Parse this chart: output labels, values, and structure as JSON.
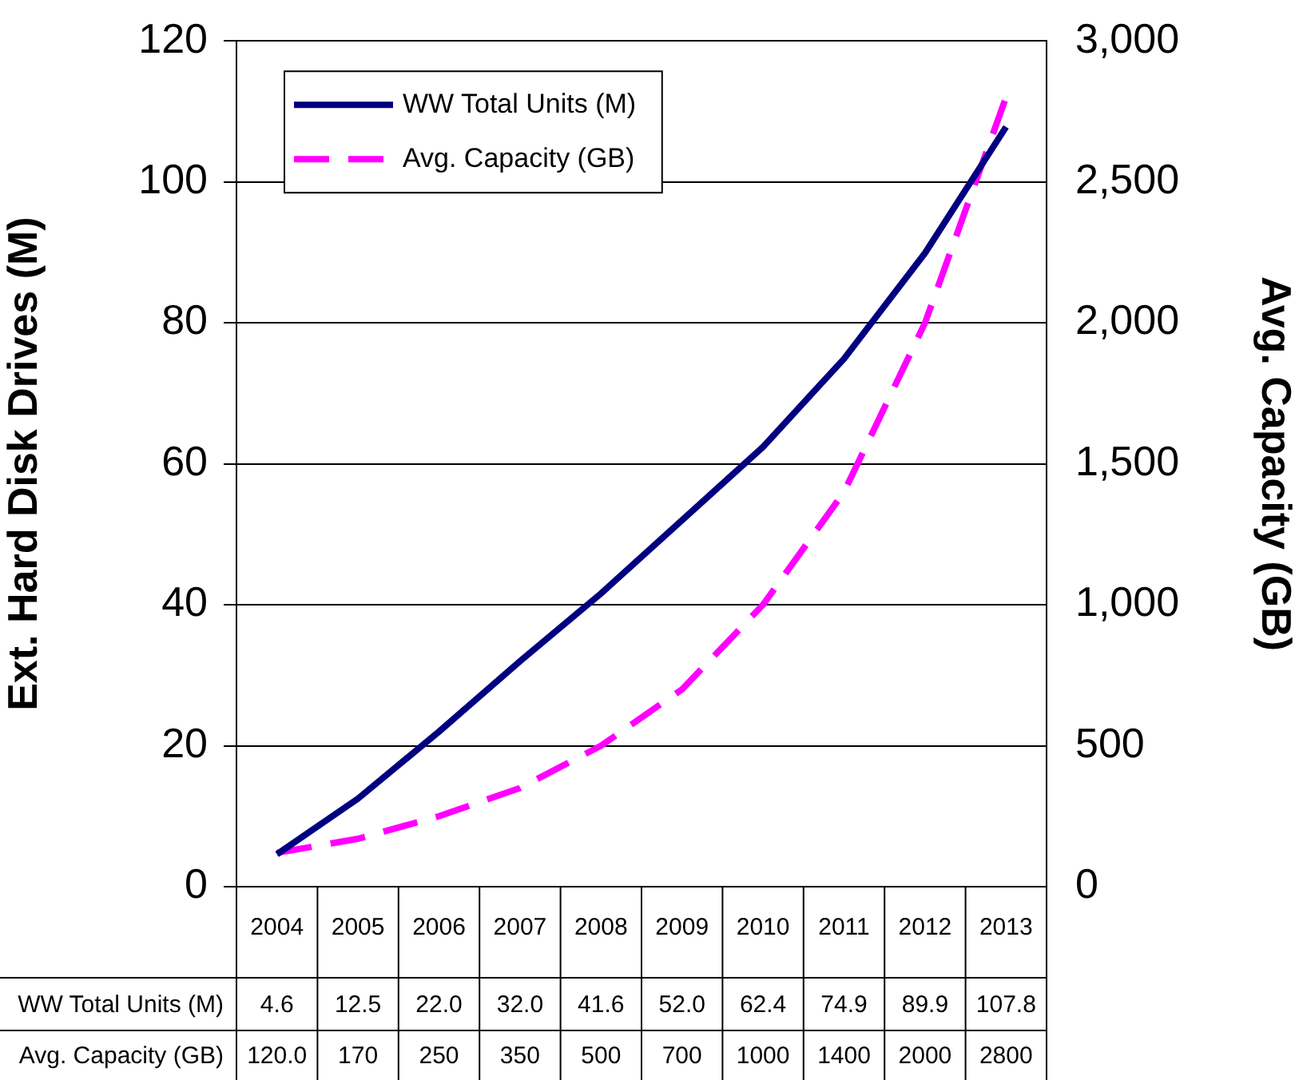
{
  "chart_data": {
    "type": "line",
    "ylabel": "Ext. Hard Disk Drives (M)",
    "y2label": "Avg. Capacity (GB)",
    "categories": [
      "2004",
      "2005",
      "2006",
      "2007",
      "2008",
      "2009",
      "2010",
      "2011",
      "2012",
      "2013"
    ],
    "series": [
      {
        "name": "WW Total Units (M)",
        "color": "#000080",
        "line_style": "solid",
        "values": [
          4.6,
          12.5,
          22.0,
          32.0,
          41.6,
          52.0,
          62.4,
          74.9,
          89.9,
          107.8
        ],
        "value_labels": [
          "4.6",
          "12.5",
          "22.0",
          "32.0",
          "41.6",
          "52.0",
          "62.4",
          "74.9",
          "89.9",
          "107.8"
        ]
      },
      {
        "name": "Avg. Capacity (GB)",
        "color": "#ff00ff",
        "line_style": "dashed",
        "axis": "y2",
        "values": [
          120.0,
          170,
          250,
          350,
          500,
          700,
          1000,
          1400,
          2000,
          2800
        ],
        "value_labels": [
          "120.0",
          "170",
          "250",
          "350",
          "500",
          "700",
          "1000",
          "1400",
          "2000",
          "2800"
        ]
      }
    ],
    "ylim": [
      0,
      120
    ],
    "yticks": [
      0,
      20,
      40,
      60,
      80,
      100,
      120
    ],
    "y2lim": [
      0,
      3000
    ],
    "y2ticks": [
      0,
      {
        "value": 500,
        "label": "500"
      },
      {
        "value": 1000,
        "label": "1,000"
      },
      {
        "value": 1500,
        "label": "1,500"
      },
      {
        "value": 2000,
        "label": "2,000"
      },
      {
        "value": 2500,
        "label": "2,500"
      },
      {
        "value": 3000,
        "label": "3,000"
      }
    ],
    "grid": "y",
    "legend": "top left",
    "marker": "none"
  }
}
